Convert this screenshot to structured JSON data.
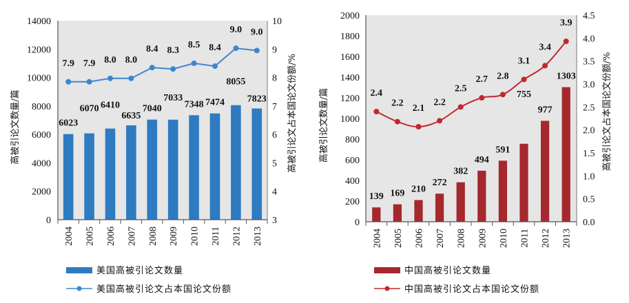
{
  "chart_data": [
    {
      "id": "usa",
      "type": "bar+line",
      "title": "",
      "categories": [
        "2004",
        "2005",
        "2006",
        "2007",
        "2008",
        "2009",
        "2010",
        "2011",
        "2012",
        "2013"
      ],
      "series": [
        {
          "name": "美国高被引论文数量",
          "kind": "bar",
          "axis": "left",
          "color": "#2E7BC1",
          "values": [
            6023,
            6070,
            6410,
            6635,
            7040,
            7033,
            7348,
            7474,
            8055,
            7823
          ],
          "labels": [
            "6023",
            "6070",
            "6410",
            "6635",
            "7040",
            "7033",
            "7348",
            "7474",
            "8055",
            "7823"
          ]
        },
        {
          "name": "美国高被引论文占本国论文份额",
          "kind": "line",
          "axis": "right",
          "color": "#3E86CC",
          "values": [
            7.85,
            7.85,
            7.97,
            7.97,
            8.35,
            8.3,
            8.5,
            8.4,
            9.03,
            8.95
          ],
          "labels": [
            "7.9",
            "7.9",
            "8.0",
            "8.0",
            "8.4",
            "8.3",
            "8.5",
            "8.4",
            "9.0",
            "9.0"
          ]
        }
      ],
      "ylabel_left": "高被引论文数量/篇",
      "ylabel_right": "高被引论文占本国论文份额/%",
      "ylim_left": [
        0,
        14000
      ],
      "yticks_left": [
        0,
        2000,
        4000,
        6000,
        8000,
        10000,
        12000,
        14000
      ],
      "ytick_labels_left": [
        "0",
        "2000",
        "4000",
        "6000",
        "8000",
        "10000",
        "12000",
        "14000"
      ],
      "ylim_right": [
        3,
        10
      ],
      "yticks_right": [
        3,
        4,
        5,
        6,
        7,
        8,
        9,
        10
      ],
      "ytick_labels_right": [
        "3",
        "4",
        "5",
        "6",
        "7",
        "8",
        "9",
        "10"
      ],
      "grid": false,
      "plot_background": "#E6E6E6",
      "legend_position": "bottom"
    },
    {
      "id": "china",
      "type": "bar+line",
      "title": "",
      "categories": [
        "2004",
        "2005",
        "2006",
        "2007",
        "2008",
        "2009",
        "2010",
        "2011",
        "2012",
        "2013"
      ],
      "series": [
        {
          "name": "中国高被引论文数量",
          "kind": "bar",
          "axis": "left",
          "color": "#A4282E",
          "values": [
            139,
            169,
            210,
            272,
            382,
            494,
            591,
            755,
            977,
            1303
          ],
          "labels": [
            "139",
            "169",
            "210",
            "272",
            "382",
            "494",
            "591",
            "755",
            "977",
            "1303"
          ]
        },
        {
          "name": "中国高被引论文占本国论文份额",
          "kind": "line",
          "axis": "right",
          "color": "#C0282E",
          "values": [
            2.4,
            2.18,
            2.07,
            2.2,
            2.5,
            2.7,
            2.77,
            3.1,
            3.4,
            3.93
          ],
          "labels": [
            "2.4",
            "2.2",
            "2.1",
            "2.2",
            "2.5",
            "2.7",
            "2.8",
            "3.1",
            "3.4",
            "3.9"
          ]
        }
      ],
      "ylabel_left": "高被引论文数量/篇",
      "ylabel_right": "高被引论文占本国论文份额/%",
      "ylim_left": [
        0,
        2000
      ],
      "yticks_left": [
        0,
        200,
        400,
        600,
        800,
        1000,
        1200,
        1400,
        1600,
        1800,
        2000
      ],
      "ytick_labels_left": [
        "0",
        "200",
        "400",
        "600",
        "800",
        "1000",
        "1200",
        "1400",
        "1600",
        "1800",
        "2000"
      ],
      "ylim_right": [
        0,
        4.5
      ],
      "yticks_right": [
        0,
        0.5,
        1.0,
        1.5,
        2.0,
        2.5,
        3.0,
        3.5,
        4.0,
        4.5
      ],
      "ytick_labels_right": [
        "0.0",
        "0.5",
        "1.0",
        "1.5",
        "2.0",
        "2.5",
        "3.0",
        "3.5",
        "4.0",
        "4.5"
      ],
      "grid": false,
      "plot_background": "#E6E6E6",
      "legend_position": "bottom"
    }
  ]
}
